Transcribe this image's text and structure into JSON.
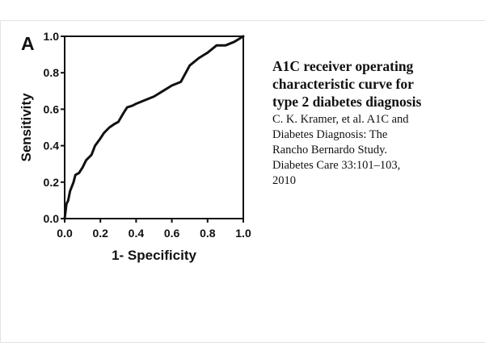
{
  "slide": {
    "panel_label": "A",
    "caption_title": [
      "A1C receiver operating",
      "characteristic curve for",
      "type 2 diabetes diagnosis"
    ],
    "citation": [
      "C. K. Kramer, et al. A1C and",
      "Diabetes Diagnosis: The",
      "Rancho Bernardo Study.",
      "Diabetes Care 33:101–103,",
      "2010"
    ]
  },
  "chart_data": {
    "type": "line",
    "xlabel": "1- Specificity",
    "ylabel": "Sensitivity",
    "xlim": [
      0,
      1
    ],
    "ylim": [
      0,
      1
    ],
    "x_ticks": [
      "0.0",
      "0.2",
      "0.4",
      "0.6",
      "0.8",
      "1.0"
    ],
    "y_ticks": [
      "0.0",
      "0.2",
      "0.4",
      "0.6",
      "0.8",
      "1.0"
    ],
    "grid": false,
    "line_color": "#111111",
    "series": [
      {
        "x": [
          0,
          0.005,
          0.01,
          0.02,
          0.03,
          0.05,
          0.06,
          0.08,
          0.1,
          0.12,
          0.15,
          0.17,
          0.2,
          0.22,
          0.25,
          0.28,
          0.3,
          0.33,
          0.35,
          0.38,
          0.4,
          0.45,
          0.5,
          0.55,
          0.6,
          0.65,
          0.7,
          0.75,
          0.8,
          0.85,
          0.9,
          0.95,
          1.0
        ],
        "y": [
          0,
          0.04,
          0.08,
          0.1,
          0.15,
          0.2,
          0.24,
          0.25,
          0.28,
          0.32,
          0.35,
          0.4,
          0.44,
          0.47,
          0.5,
          0.52,
          0.53,
          0.58,
          0.61,
          0.62,
          0.63,
          0.65,
          0.67,
          0.7,
          0.73,
          0.75,
          0.84,
          0.88,
          0.91,
          0.95,
          0.95,
          0.97,
          1.0
        ]
      }
    ]
  }
}
